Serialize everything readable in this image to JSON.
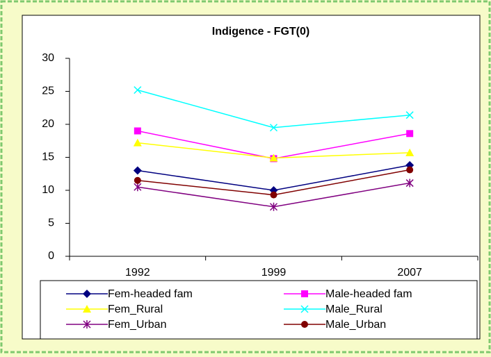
{
  "chart_data": {
    "type": "line",
    "title": "Indigence - FGT(0)",
    "categories": [
      "1992",
      "1999",
      "2007"
    ],
    "series": [
      {
        "name": "Fem-headed fam",
        "color": "#000080",
        "marker": "diamond",
        "values": [
          13,
          10,
          13.8
        ]
      },
      {
        "name": "Male-headed fam",
        "color": "#ff00ff",
        "marker": "square",
        "values": [
          19,
          14.8,
          18.6
        ]
      },
      {
        "name": "Fem_Rural",
        "color": "#ffff00",
        "marker": "triangle",
        "values": [
          17.2,
          14.9,
          15.7
        ]
      },
      {
        "name": "Male_Rural",
        "color": "#00ffff",
        "marker": "x",
        "values": [
          25.2,
          19.5,
          21.4
        ]
      },
      {
        "name": "Fem_Urban",
        "color": "#800080",
        "marker": "star",
        "values": [
          10.5,
          7.5,
          11.1
        ]
      },
      {
        "name": "Male_Urban",
        "color": "#800000",
        "marker": "circle",
        "values": [
          11.5,
          9.3,
          13.1
        ]
      }
    ],
    "ylim": [
      0,
      30
    ],
    "yticks": [
      0,
      5,
      10,
      15,
      20,
      25,
      30
    ],
    "grid": false,
    "legend": "bottom"
  }
}
